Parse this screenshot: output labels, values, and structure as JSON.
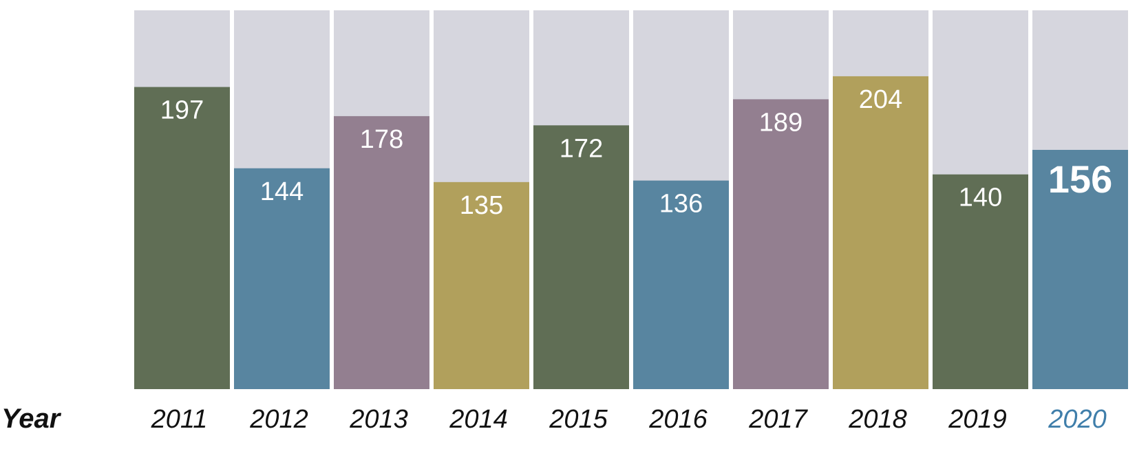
{
  "chart_data": {
    "type": "bar",
    "xlabel": "Year",
    "categories": [
      "2011",
      "2012",
      "2013",
      "2014",
      "2015",
      "2016",
      "2017",
      "2018",
      "2019",
      "2020"
    ],
    "values": [
      197,
      144,
      178,
      135,
      172,
      136,
      189,
      204,
      140,
      156
    ],
    "ylim": [
      0,
      247
    ],
    "highlight_category": "2020",
    "colors": {
      "background_bar": "#d6d6de",
      "bars": [
        "#606e55",
        "#5885a0",
        "#937f90",
        "#b1a05c",
        "#606e55",
        "#5885a0",
        "#937f90",
        "#b1a05c",
        "#606e55",
        "#5885a0"
      ],
      "tick_text": "#111111",
      "highlight_text": "#3f7eaa"
    }
  }
}
